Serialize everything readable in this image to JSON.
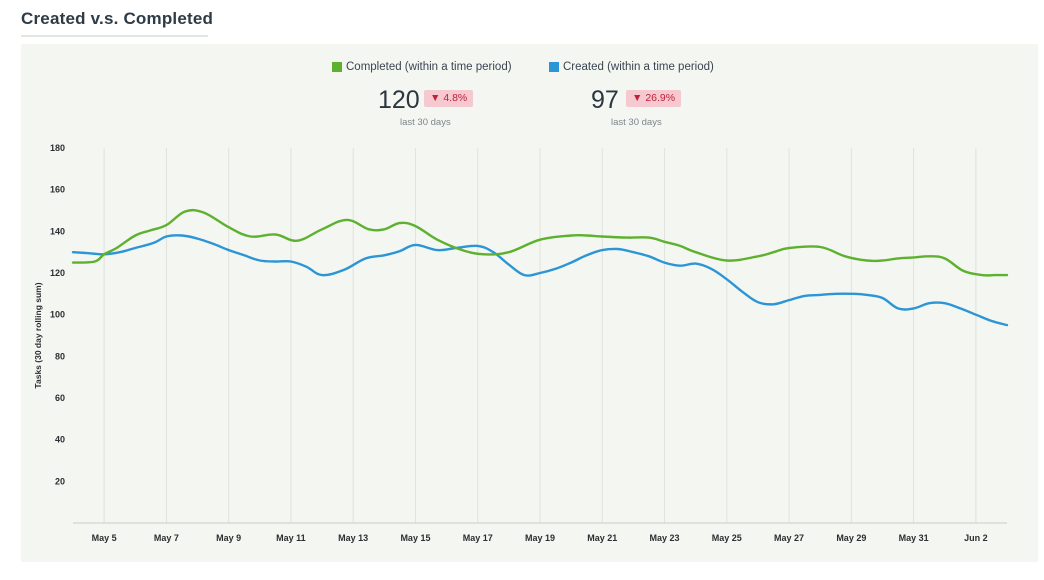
{
  "header": {
    "title": "Created v.s. Completed"
  },
  "legend": {
    "completed_label": "Completed (within a time period)",
    "created_label": "Created (within a time period)"
  },
  "kpis": {
    "completed": {
      "value": "120",
      "change": "4.8%",
      "caption": "last 30 days"
    },
    "created": {
      "value": "97",
      "change": "26.9%",
      "caption": "last 30 days"
    }
  },
  "colors": {
    "completed": "#5db12f",
    "created": "#2b95d6",
    "grid": "#dfe3dc",
    "axis": "#c9cec6",
    "badge_bg": "#f5c9cf",
    "badge_text": "#c0213a"
  },
  "icons": {
    "trend_down": "triangle-down-icon"
  },
  "chart_data": {
    "type": "line",
    "title": "Created v.s. Completed",
    "xlabel": "",
    "ylabel": "Tasks (30 day rolling sum)",
    "xlim": [
      0,
      30
    ],
    "ylim": [
      0,
      180
    ],
    "yticks": [
      20,
      40,
      60,
      80,
      100,
      120,
      140,
      160,
      180
    ],
    "grid": true,
    "legend_position": "top-center",
    "x_tick_positions": [
      1,
      3,
      5,
      7,
      9,
      11,
      13,
      15,
      17,
      19,
      21,
      23,
      25,
      27,
      29
    ],
    "x_tick_labels": [
      "May 5",
      "May 7",
      "May 9",
      "May 11",
      "May 13",
      "May 15",
      "May 17",
      "May 19",
      "May 21",
      "May 23",
      "May 25",
      "May 27",
      "May 29",
      "May 31",
      "Jun 2"
    ],
    "series": [
      {
        "name": "Completed (within a time period)",
        "x": [
          0,
          0.7,
          1,
          1.4,
          2,
          2.5,
          3,
          3.6,
          4.2,
          5,
          5.7,
          6.5,
          7.2,
          8,
          8.8,
          9.5,
          10,
          10.5,
          11,
          11.7,
          12.5,
          13.2,
          14,
          15,
          16,
          16.5,
          17,
          17.8,
          18.5,
          19,
          19.5,
          20,
          21,
          22,
          22.5,
          23,
          24,
          24.8,
          25.5,
          26,
          26.5,
          27,
          27.5,
          28,
          28.6,
          29.2,
          29.6,
          30
        ],
        "values": [
          125,
          125.5,
          129,
          132,
          138,
          140.5,
          143,
          149.5,
          149,
          142,
          137.5,
          138.5,
          135.5,
          141,
          145.5,
          141,
          141,
          144,
          142.5,
          136,
          131,
          129,
          130,
          136,
          138,
          138,
          137.5,
          137,
          137,
          135,
          133,
          130,
          126,
          128,
          130,
          132,
          132.5,
          128,
          126,
          126,
          127,
          127.5,
          128,
          127,
          121,
          119,
          119,
          119
        ]
      },
      {
        "name": "Created (within a time period)",
        "x": [
          0,
          0.5,
          1,
          1.5,
          2,
          2.6,
          3,
          3.5,
          4,
          4.5,
          5,
          5.5,
          6,
          6.5,
          7,
          7.5,
          8,
          8.7,
          9.4,
          10,
          10.5,
          11,
          11.7,
          12.3,
          13,
          13.5,
          14,
          14.5,
          15,
          15.5,
          16,
          16.5,
          17,
          17.5,
          18,
          18.5,
          19,
          19.5,
          20,
          20.5,
          21,
          21.5,
          22,
          22.5,
          23,
          23.5,
          24,
          24.5,
          25,
          25.5,
          26,
          26.5,
          27,
          27.5,
          28,
          28.5,
          29,
          29.5,
          30
        ],
        "values": [
          130,
          129.5,
          129,
          130,
          132,
          134.5,
          137.5,
          138,
          136.5,
          134,
          131,
          128.5,
          126,
          125.5,
          125.5,
          123,
          119,
          121.5,
          127,
          128.5,
          130.5,
          133.5,
          131,
          132,
          133,
          130,
          124,
          119,
          120,
          122,
          125,
          128.5,
          131,
          131.5,
          130,
          128,
          125,
          123.5,
          124.5,
          122,
          117,
          111,
          106,
          105,
          107,
          109,
          109.5,
          110,
          110,
          109.5,
          108,
          103,
          103,
          105.5,
          105.5,
          103,
          100,
          97,
          95
        ]
      }
    ]
  }
}
